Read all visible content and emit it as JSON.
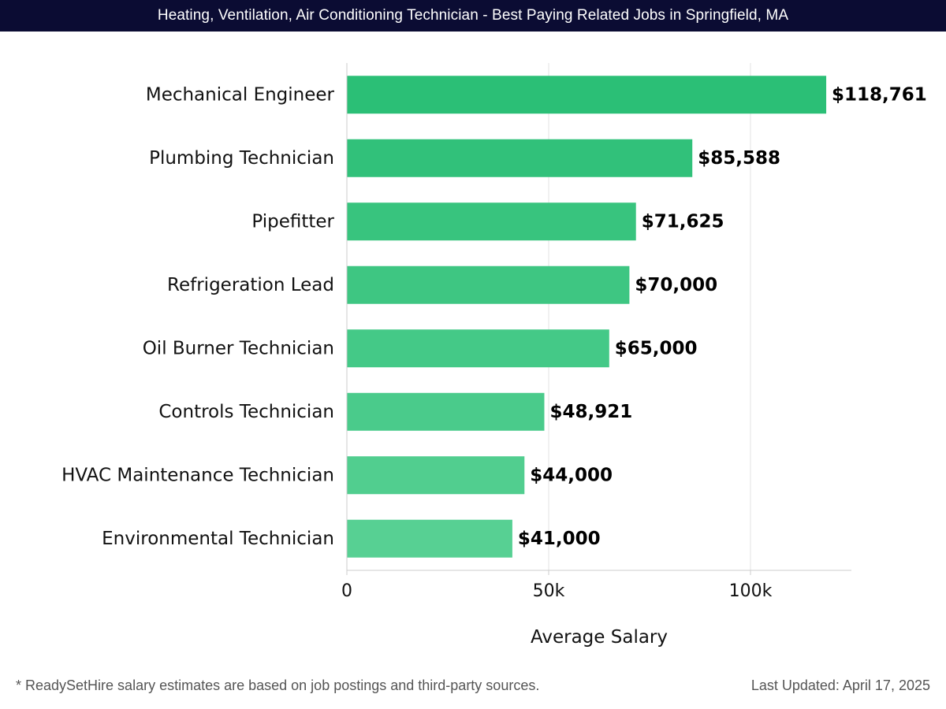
{
  "header": {
    "title": "Heating, Ventilation, Air Conditioning Technician - Best Paying Related Jobs in Springfield, MA"
  },
  "footer": {
    "note": "* ReadySetHire salary estimates are based on job postings and third-party sources.",
    "updated": "Last Updated: April 17, 2025"
  },
  "colors": {
    "bar_top": "#2bbf76",
    "bar_bottom": "#57d093",
    "header_bg": "#0b0c33"
  },
  "chart_data": {
    "type": "bar",
    "orientation": "horizontal",
    "categories": [
      "Mechanical Engineer",
      "Plumbing Technician",
      "Pipefitter",
      "Refrigeration Lead",
      "Oil Burner Technician",
      "Controls Technician",
      "HVAC Maintenance Technician",
      "Environmental Technician"
    ],
    "values": [
      118761,
      85588,
      71625,
      70000,
      65000,
      48921,
      44000,
      41000
    ],
    "value_labels": [
      "$118,761",
      "$85,588",
      "$71,625",
      "$70,000",
      "$65,000",
      "$48,921",
      "$44,000",
      "$41,000"
    ],
    "xlabel": "Average Salary",
    "xlim": [
      0,
      125000
    ],
    "xticks": [
      0,
      50000,
      100000
    ],
    "xtick_labels": [
      "0",
      "50k",
      "100k"
    ],
    "grid": true
  }
}
